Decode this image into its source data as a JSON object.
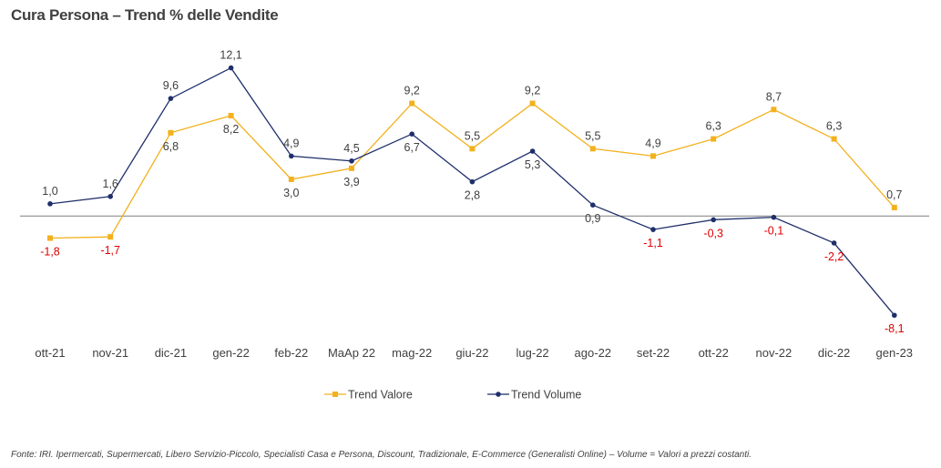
{
  "chart_data": {
    "type": "line",
    "title": "Cura Persona – Trend % delle Vendite",
    "categories": [
      "ott-21",
      "nov-21",
      "dic-21",
      "gen-22",
      "feb-22",
      "MaAp 22",
      "mag-22",
      "giu-22",
      "lug-22",
      "ago-22",
      "set-22",
      "ott-22",
      "nov-22",
      "dic-22",
      "gen-23"
    ],
    "series": [
      {
        "name": "Trend Valore",
        "color": "#F2B11D",
        "values": [
          -1.8,
          -1.7,
          6.8,
          8.2,
          3.0,
          3.9,
          9.2,
          5.5,
          9.2,
          5.5,
          4.9,
          6.3,
          8.7,
          6.3,
          0.7
        ],
        "labels": [
          "-1,8",
          "-1,7",
          "6,8",
          "8,2",
          "3,0",
          "3,9",
          "9,2",
          "5,5",
          "9,2",
          "5,5",
          "4,9",
          "6,3",
          "8,7",
          "6,3",
          "0,7"
        ]
      },
      {
        "name": "Trend Volume",
        "color": "#1F2F6B",
        "values": [
          1.0,
          1.6,
          9.6,
          12.1,
          4.9,
          4.5,
          6.7,
          2.8,
          5.3,
          0.9,
          -1.1,
          -0.3,
          -0.1,
          -2.2,
          -8.1
        ],
        "labels": [
          "1,0",
          "1,6",
          "9,6",
          "12,1",
          "4,9",
          "4,5",
          "6,7",
          "2,8",
          "5,3",
          "0,9",
          "-1,1",
          "-0,3",
          "-0,1",
          "-2,2",
          "-8,1"
        ]
      }
    ],
    "negative_label_color": "#E00000",
    "positive_label_color": "#404040",
    "ylim": [
      -8.1,
      12.1
    ],
    "grid": false,
    "zero_line": true,
    "legend": "bottom"
  },
  "footnote": "Fonte: IRI. Ipermercati, Supermercati, Libero Servizio-Piccolo,  Specialisti Casa e Persona, Discount, Tradizionale, E-Commerce (Generalisti Online) –  Volume =  Valori a prezzi costanti."
}
